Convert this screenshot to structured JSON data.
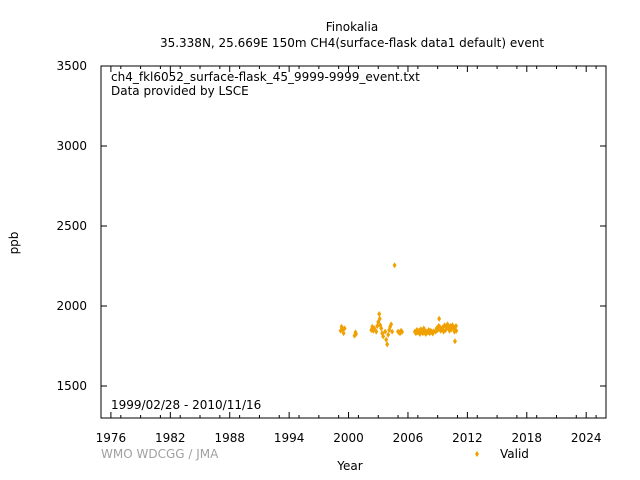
{
  "chart_data": {
    "type": "scatter",
    "title_line1": "Finokalia",
    "title_line2": "35.338N, 25.669E 150m    CH4(surface-flask data1 default) event",
    "xlabel": "Year",
    "ylabel": "ppb",
    "xlim": [
      1975,
      2026
    ],
    "ylim": [
      1300,
      3500
    ],
    "x_ticks": [
      "1976",
      "1982",
      "1988",
      "1994",
      "2000",
      "2006",
      "2012",
      "2018",
      "2024"
    ],
    "y_ticks": [
      "1500",
      "2000",
      "2500",
      "3000",
      "3500"
    ],
    "annotations": [
      "ch4_fkl6052_surface-flask_45_9999-9999_event.txt",
      "Data provided by LSCE"
    ],
    "date_range": "1999/02/28 - 2010/11/16",
    "credit": "WMO WDCGG / JMA",
    "legend": {
      "placement": "bottom-right",
      "entries": [
        {
          "label": "Valid",
          "color": "#f0a000",
          "marker": "diamond"
        }
      ]
    },
    "grid": false,
    "series": [
      {
        "name": "Valid",
        "color": "#f0a000",
        "points": [
          [
            1999.2,
            1845
          ],
          [
            1999.3,
            1870
          ],
          [
            1999.4,
            1855
          ],
          [
            1999.5,
            1830
          ],
          [
            1999.6,
            1860
          ],
          [
            2000.6,
            1815
          ],
          [
            2000.7,
            1835
          ],
          [
            2000.75,
            1825
          ],
          [
            2002.3,
            1850
          ],
          [
            2002.4,
            1870
          ],
          [
            2002.5,
            1845
          ],
          [
            2002.6,
            1860
          ],
          [
            2002.8,
            1840
          ],
          [
            2002.9,
            1875
          ],
          [
            2003.0,
            1900
          ],
          [
            2003.1,
            1950
          ],
          [
            2003.15,
            1920
          ],
          [
            2003.2,
            1880
          ],
          [
            2003.3,
            1860
          ],
          [
            2003.4,
            1830
          ],
          [
            2003.5,
            1810
          ],
          [
            2003.7,
            1840
          ],
          [
            2003.8,
            1790
          ],
          [
            2003.9,
            1760
          ],
          [
            2004.0,
            1820
          ],
          [
            2004.1,
            1850
          ],
          [
            2004.2,
            1870
          ],
          [
            2004.3,
            1885
          ],
          [
            2004.4,
            1840
          ],
          [
            2004.65,
            2255
          ],
          [
            2005.0,
            1840
          ],
          [
            2005.1,
            1835
          ],
          [
            2005.2,
            1830
          ],
          [
            2005.3,
            1845
          ],
          [
            2005.4,
            1838
          ],
          [
            2006.7,
            1840
          ],
          [
            2006.8,
            1830
          ],
          [
            2006.9,
            1850
          ],
          [
            2007.0,
            1835
          ],
          [
            2007.1,
            1845
          ],
          [
            2007.2,
            1825
          ],
          [
            2007.3,
            1855
          ],
          [
            2007.4,
            1840
          ],
          [
            2007.5,
            1830
          ],
          [
            2007.6,
            1860
          ],
          [
            2007.7,
            1845
          ],
          [
            2007.8,
            1825
          ],
          [
            2007.9,
            1840
          ],
          [
            2008.0,
            1835
          ],
          [
            2008.1,
            1850
          ],
          [
            2008.2,
            1830
          ],
          [
            2008.3,
            1845
          ],
          [
            2008.4,
            1838
          ],
          [
            2008.5,
            1828
          ],
          [
            2008.6,
            1842
          ],
          [
            2008.8,
            1840
          ],
          [
            2008.9,
            1860
          ],
          [
            2009.0,
            1850
          ],
          [
            2009.1,
            1875
          ],
          [
            2009.15,
            1920
          ],
          [
            2009.2,
            1870
          ],
          [
            2009.3,
            1845
          ],
          [
            2009.4,
            1855
          ],
          [
            2009.5,
            1865
          ],
          [
            2009.6,
            1840
          ],
          [
            2009.7,
            1880
          ],
          [
            2009.8,
            1850
          ],
          [
            2009.9,
            1870
          ],
          [
            2010.0,
            1885
          ],
          [
            2010.1,
            1860
          ],
          [
            2010.2,
            1845
          ],
          [
            2010.3,
            1875
          ],
          [
            2010.4,
            1855
          ],
          [
            2010.5,
            1880
          ],
          [
            2010.6,
            1865
          ],
          [
            2010.7,
            1840
          ],
          [
            2010.75,
            1780
          ],
          [
            2010.8,
            1850
          ],
          [
            2010.85,
            1875
          ],
          [
            2010.88,
            1845
          ]
        ]
      }
    ]
  }
}
